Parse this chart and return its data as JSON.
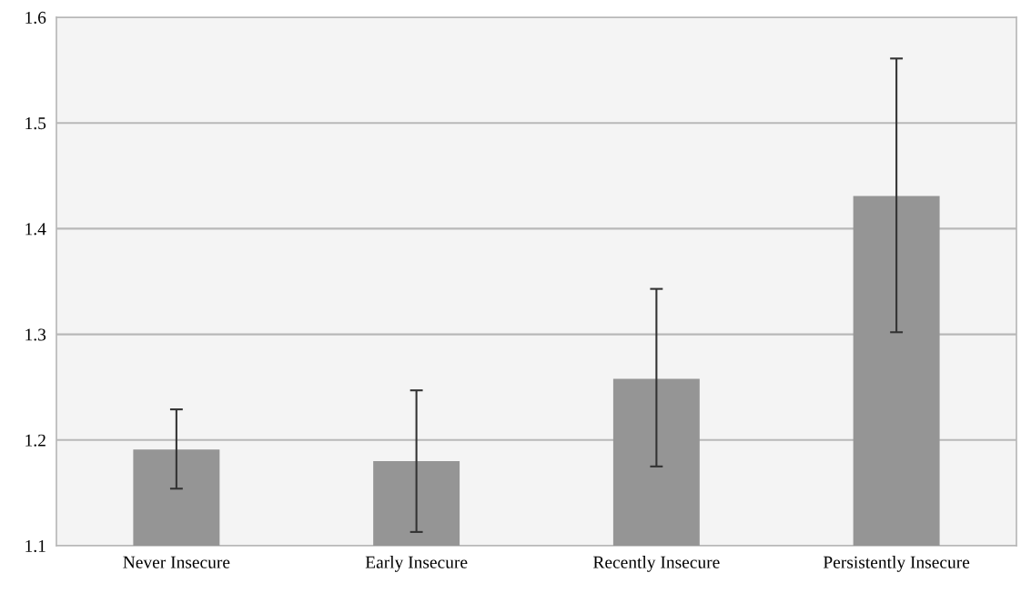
{
  "chart_data": {
    "type": "bar",
    "categories": [
      "Never Insecure",
      "Early Insecure",
      "Recently Insecure",
      "Persistently Insecure"
    ],
    "values": [
      1.191,
      1.18,
      1.258,
      1.431
    ],
    "errors": [
      [
        1.154,
        1.229
      ],
      [
        1.113,
        1.247
      ],
      [
        1.175,
        1.343
      ],
      [
        1.302,
        1.561
      ]
    ],
    "color": "#959595",
    "ylim": [
      1.1,
      1.6
    ],
    "yticks": [
      1.1,
      1.2,
      1.3,
      1.4,
      1.5,
      1.6
    ],
    "grid": "y",
    "legend": false
  }
}
